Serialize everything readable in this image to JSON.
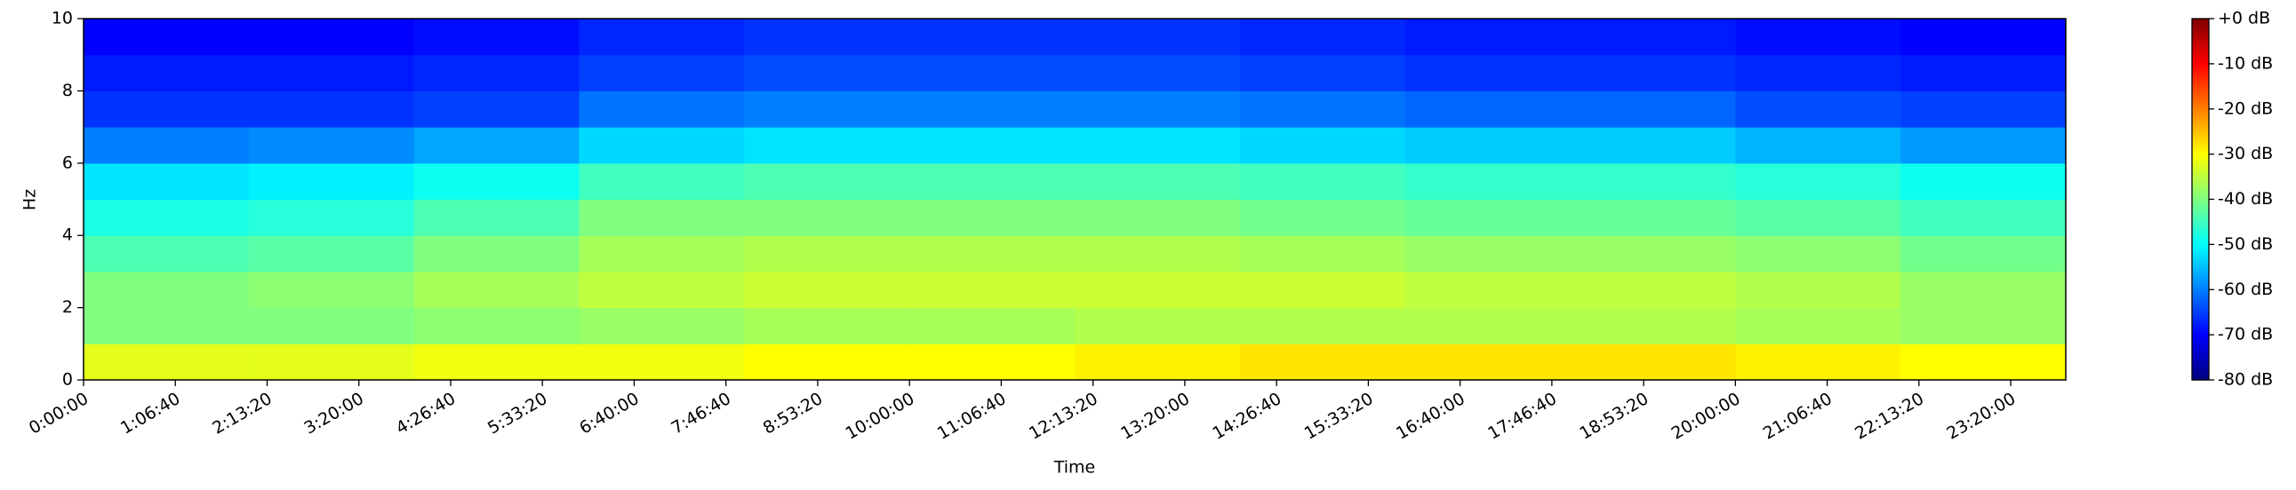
{
  "chart_data": {
    "type": "spectrogram",
    "x_label": "Time",
    "y_label": "Hz",
    "colormap": "jet",
    "xlim": [
      0,
      86400
    ],
    "ylim": [
      0,
      10
    ],
    "clim": [
      -80,
      0
    ],
    "xbins": [
      0,
      7200,
      14400,
      21600,
      28800,
      36000,
      43200,
      50400,
      57600,
      64800,
      72000,
      79200,
      86400
    ],
    "ybins": [
      0,
      1,
      2,
      3,
      4,
      5,
      6,
      7,
      8,
      9,
      10
    ],
    "z": [
      [
        -32,
        -32,
        -31,
        -31,
        -30,
        -30,
        -29,
        -28,
        -28,
        -28,
        -29,
        -30
      ],
      [
        -40,
        -40,
        -39,
        -38,
        -37,
        -37,
        -36,
        -36,
        -36,
        -36,
        -37,
        -38
      ],
      [
        -40,
        -39,
        -37,
        -35,
        -34,
        -34,
        -34,
        -34,
        -35,
        -35,
        -36,
        -38
      ],
      [
        -44,
        -43,
        -40,
        -37,
        -36,
        -36,
        -36,
        -37,
        -38,
        -38,
        -39,
        -41
      ],
      [
        -48,
        -47,
        -44,
        -40,
        -40,
        -40,
        -40,
        -41,
        -42,
        -42,
        -43,
        -45
      ],
      [
        -52,
        -51,
        -49,
        -45,
        -44,
        -44,
        -44,
        -45,
        -46,
        -46,
        -47,
        -49
      ],
      [
        -60,
        -59,
        -57,
        -53,
        -52,
        -52,
        -52,
        -53,
        -54,
        -54,
        -56,
        -58
      ],
      [
        -66,
        -66,
        -65,
        -61,
        -60,
        -60,
        -60,
        -61,
        -62,
        -62,
        -64,
        -65
      ],
      [
        -68,
        -68,
        -67,
        -65,
        -64,
        -64,
        -64,
        -65,
        -66,
        -66,
        -67,
        -68
      ],
      [
        -70,
        -70,
        -69,
        -67,
        -66,
        -66,
        -66,
        -67,
        -68,
        -68,
        -69,
        -70
      ]
    ],
    "xticks": [
      {
        "value": 0,
        "label": "0:00:00"
      },
      {
        "value": 4000,
        "label": "1:06:40"
      },
      {
        "value": 8000,
        "label": "2:13:20"
      },
      {
        "value": 12000,
        "label": "3:20:00"
      },
      {
        "value": 16000,
        "label": "4:26:40"
      },
      {
        "value": 20000,
        "label": "5:33:20"
      },
      {
        "value": 24000,
        "label": "6:40:00"
      },
      {
        "value": 28000,
        "label": "7:46:40"
      },
      {
        "value": 32000,
        "label": "8:53:20"
      },
      {
        "value": 36000,
        "label": "10:00:00"
      },
      {
        "value": 40000,
        "label": "11:06:40"
      },
      {
        "value": 44000,
        "label": "12:13:20"
      },
      {
        "value": 48000,
        "label": "13:20:00"
      },
      {
        "value": 52000,
        "label": "14:26:40"
      },
      {
        "value": 56000,
        "label": "15:33:20"
      },
      {
        "value": 60000,
        "label": "16:40:00"
      },
      {
        "value": 64000,
        "label": "17:46:40"
      },
      {
        "value": 68000,
        "label": "18:53:20"
      },
      {
        "value": 72000,
        "label": "20:00:00"
      },
      {
        "value": 76000,
        "label": "21:06:40"
      },
      {
        "value": 80000,
        "label": "22:13:20"
      },
      {
        "value": 84000,
        "label": "23:20:00"
      }
    ],
    "yticks": [
      0,
      2,
      4,
      6,
      8,
      10
    ],
    "cticks": [
      {
        "value": 0,
        "label": "+0 dB"
      },
      {
        "value": -10,
        "label": "-10 dB"
      },
      {
        "value": -20,
        "label": "-20 dB"
      },
      {
        "value": -30,
        "label": "-30 dB"
      },
      {
        "value": -40,
        "label": "-40 dB"
      },
      {
        "value": -50,
        "label": "-50 dB"
      },
      {
        "value": -60,
        "label": "-60 dB"
      },
      {
        "value": -70,
        "label": "-70 dB"
      },
      {
        "value": -80,
        "label": "-80 dB"
      }
    ]
  }
}
